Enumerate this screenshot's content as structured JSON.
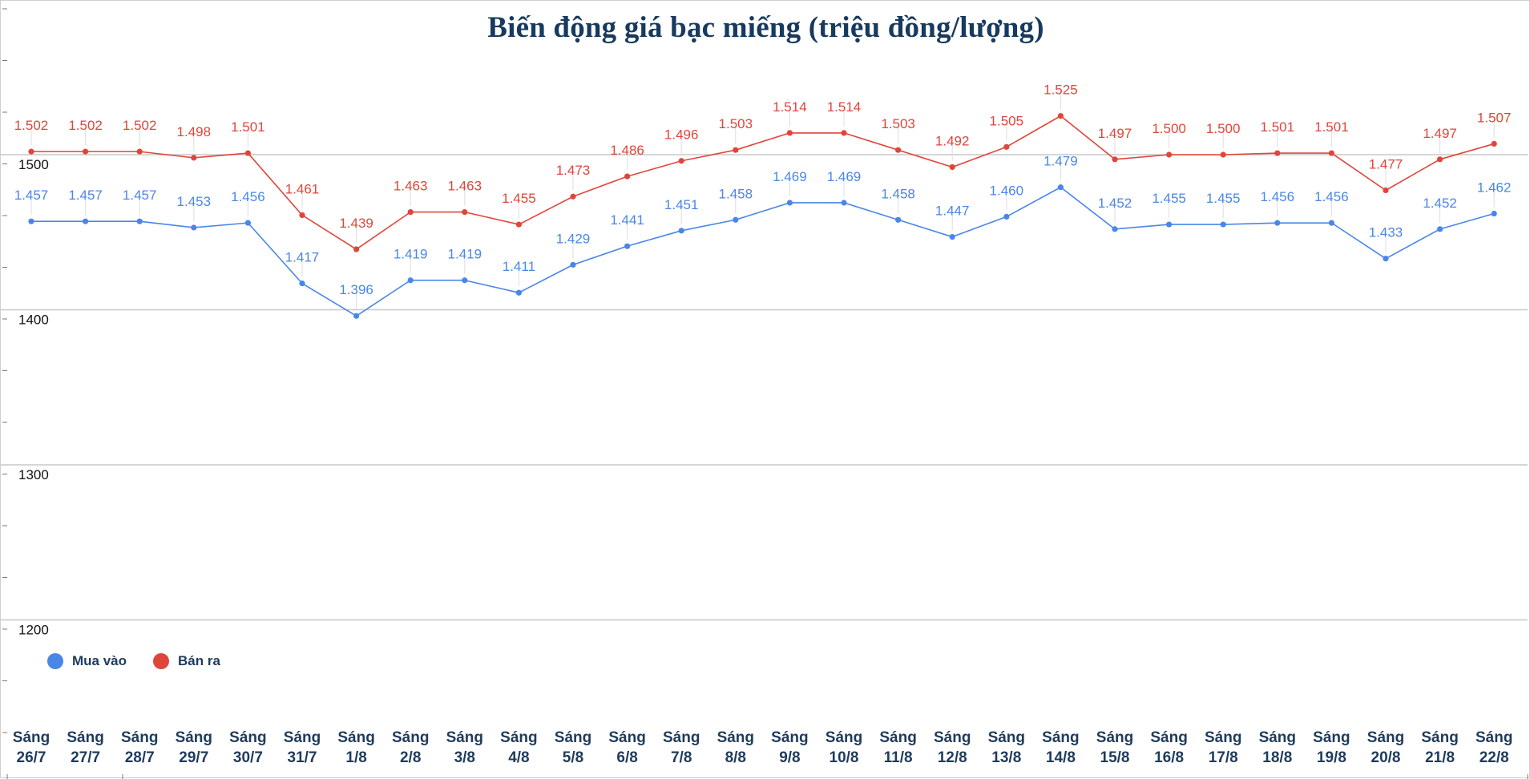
{
  "chart_data": {
    "type": "line",
    "title": "Biến động giá bạc miếng (triệu đồng/lượng)",
    "xlabel": "",
    "ylabel": "",
    "ylim": [
      1150,
      1550
    ],
    "yticks": [
      "1500",
      "1400",
      "1300",
      "1200"
    ],
    "ytick_values": [
      1500,
      1400,
      1300,
      1200
    ],
    "grid": true,
    "legend_position": "bottom-left",
    "categories": [
      [
        "Sáng",
        "26/7"
      ],
      [
        "Sáng",
        "27/7"
      ],
      [
        "Sáng",
        "28/7"
      ],
      [
        "Sáng",
        "29/7"
      ],
      [
        "Sáng",
        "30/7"
      ],
      [
        "Sáng",
        "31/7"
      ],
      [
        "Sáng",
        "1/8"
      ],
      [
        "Sáng",
        "2/8"
      ],
      [
        "Sáng",
        "3/8"
      ],
      [
        "Sáng",
        "4/8"
      ],
      [
        "Sáng",
        "5/8"
      ],
      [
        "Sáng",
        "6/8"
      ],
      [
        "Sáng",
        "7/8"
      ],
      [
        "Sáng",
        "8/8"
      ],
      [
        "Sáng",
        "9/8"
      ],
      [
        "Sáng",
        "10/8"
      ],
      [
        "Sáng",
        "11/8"
      ],
      [
        "Sáng",
        "12/8"
      ],
      [
        "Sáng",
        "13/8"
      ],
      [
        "Sáng",
        "14/8"
      ],
      [
        "Sáng",
        "15/8"
      ],
      [
        "Sáng",
        "16/8"
      ],
      [
        "Sáng",
        "17/8"
      ],
      [
        "Sáng",
        "18/8"
      ],
      [
        "Sáng",
        "19/8"
      ],
      [
        "Sáng",
        "20/8"
      ],
      [
        "Sáng",
        "21/8"
      ],
      [
        "Sáng",
        "22/8"
      ]
    ],
    "series": [
      {
        "name": "Mua vào",
        "color": "#4a86e8",
        "values": [
          1457,
          1457,
          1457,
          1453,
          1456,
          1417,
          1396,
          1419,
          1419,
          1411,
          1429,
          1441,
          1451,
          1458,
          1469,
          1469,
          1458,
          1447,
          1460,
          1479,
          1452,
          1455,
          1455,
          1456,
          1456,
          1433,
          1452,
          1462
        ],
        "labels": [
          "1.457",
          "1.457",
          "1.457",
          "1.453",
          "1.456",
          "1.417",
          "1.396",
          "1.419",
          "1.419",
          "1.411",
          "1.429",
          "1.441",
          "1.451",
          "1.458",
          "1.469",
          "1.469",
          "1.458",
          "1.447",
          "1.460",
          "1.479",
          "1.452",
          "1.455",
          "1.455",
          "1.456",
          "1.456",
          "1.433",
          "1.452",
          "1.462"
        ]
      },
      {
        "name": "Bán ra",
        "color": "#e0453a",
        "values": [
          1502,
          1502,
          1502,
          1498,
          1501,
          1461,
          1439,
          1463,
          1463,
          1455,
          1473,
          1486,
          1496,
          1503,
          1514,
          1514,
          1503,
          1492,
          1505,
          1525,
          1497,
          1500,
          1500,
          1501,
          1501,
          1477,
          1497,
          1507
        ],
        "labels": [
          "1.502",
          "1.502",
          "1.502",
          "1.498",
          "1.501",
          "1.461",
          "1.439",
          "1.463",
          "1.463",
          "1.455",
          "1.473",
          "1.486",
          "1.496",
          "1.503",
          "1.514",
          "1.514",
          "1.503",
          "1.492",
          "1.505",
          "1.525",
          "1.497",
          "1.500",
          "1.500",
          "1.501",
          "1.501",
          "1.477",
          "1.497",
          "1.507"
        ]
      }
    ]
  },
  "colors": {
    "title": "#173a5e",
    "axis_label": "#1f3b5c",
    "grid": "#c8c8c8"
  }
}
